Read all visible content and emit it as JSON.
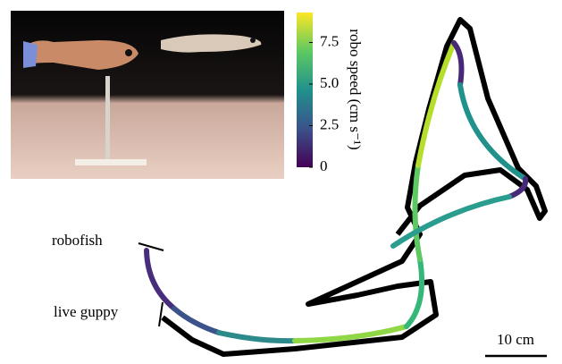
{
  "colorbar": {
    "label": "robo speed (cm s⁻¹)",
    "lim": [
      0,
      9.3
    ],
    "ticks": [
      0,
      2.5,
      {
        "value": 5,
        "label": "5.0"
      },
      7.5
    ]
  },
  "labels": {
    "robofish": "robofish",
    "live_guppy": "live guppy",
    "scale_bar": "10 cm"
  }
}
